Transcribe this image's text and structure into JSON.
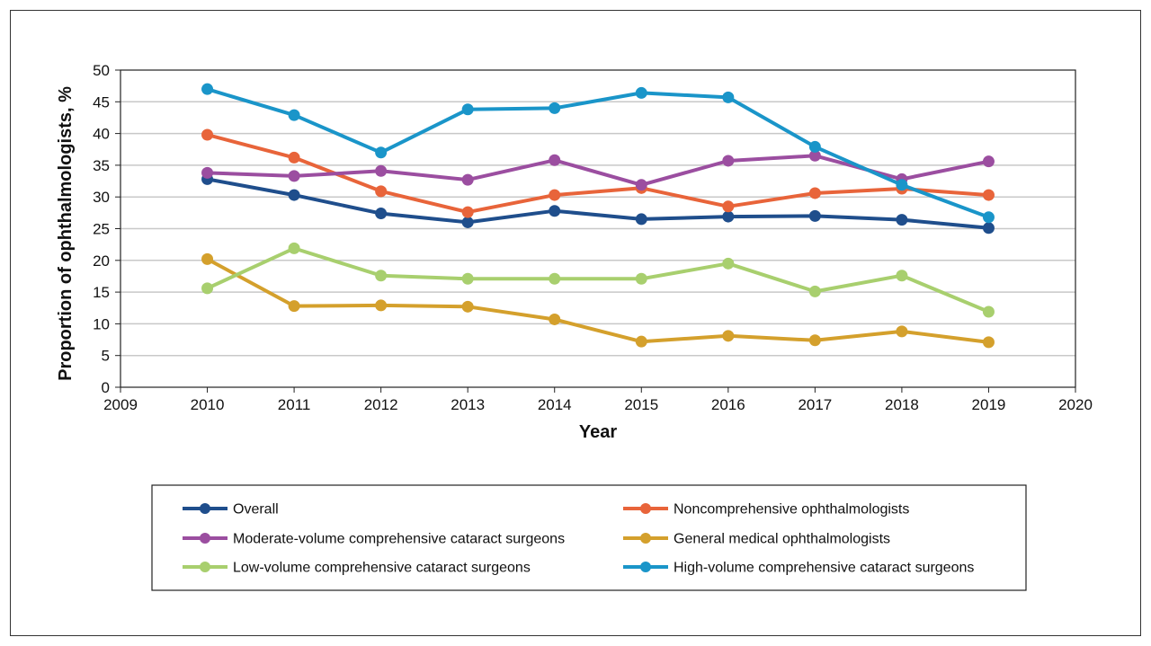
{
  "chart_data": {
    "type": "line",
    "title": "",
    "xlabel": "Year",
    "ylabel": "Proportion of ophthalmologists, %",
    "xlim": [
      2009,
      2020
    ],
    "ylim": [
      0,
      50
    ],
    "xticks": [
      "2009",
      "2010",
      "2011",
      "2012",
      "2013",
      "2014",
      "2015",
      "2016",
      "2017",
      "2018",
      "2019",
      "2020"
    ],
    "yticks": [
      "0",
      "5",
      "10",
      "15",
      "20",
      "25",
      "30",
      "35",
      "40",
      "45",
      "50"
    ],
    "grid": "horizontal",
    "legend_position": "bottom",
    "x": [
      2010,
      2011,
      2012,
      2013,
      2014,
      2015,
      2016,
      2017,
      2018,
      2019
    ],
    "series": [
      {
        "name": "Overall",
        "color": "#1f4e8c",
        "values": [
          32.8,
          30.3,
          27.4,
          26.0,
          27.8,
          26.5,
          26.9,
          27.0,
          26.4,
          25.1
        ]
      },
      {
        "name": "Noncomprehensive ophthalmologists",
        "color": "#e8643a",
        "values": [
          39.8,
          36.2,
          30.9,
          27.6,
          30.3,
          31.4,
          28.5,
          30.6,
          31.3,
          30.3
        ]
      },
      {
        "name": "Moderate-volume comprehensive cataract surgeons",
        "color": "#9b4ea0",
        "values": [
          33.8,
          33.3,
          34.1,
          32.7,
          35.8,
          31.9,
          35.7,
          36.5,
          32.8,
          35.6
        ]
      },
      {
        "name": "General medical ophthalmologists",
        "color": "#d4a02c",
        "values": [
          20.2,
          12.8,
          12.9,
          12.7,
          10.7,
          7.2,
          8.1,
          7.4,
          8.8,
          7.1
        ]
      },
      {
        "name": "Low-volume comprehensive cataract surgeons",
        "color": "#a8cf6e",
        "values": [
          15.6,
          21.9,
          17.6,
          17.1,
          17.1,
          17.1,
          19.5,
          15.1,
          17.6,
          11.9
        ]
      },
      {
        "name": "High-volume comprehensive cataract surgeons",
        "color": "#1a95c9",
        "values": [
          47.0,
          42.9,
          37.0,
          43.8,
          44.0,
          46.4,
          45.7,
          37.9,
          31.9,
          26.8
        ]
      }
    ]
  }
}
